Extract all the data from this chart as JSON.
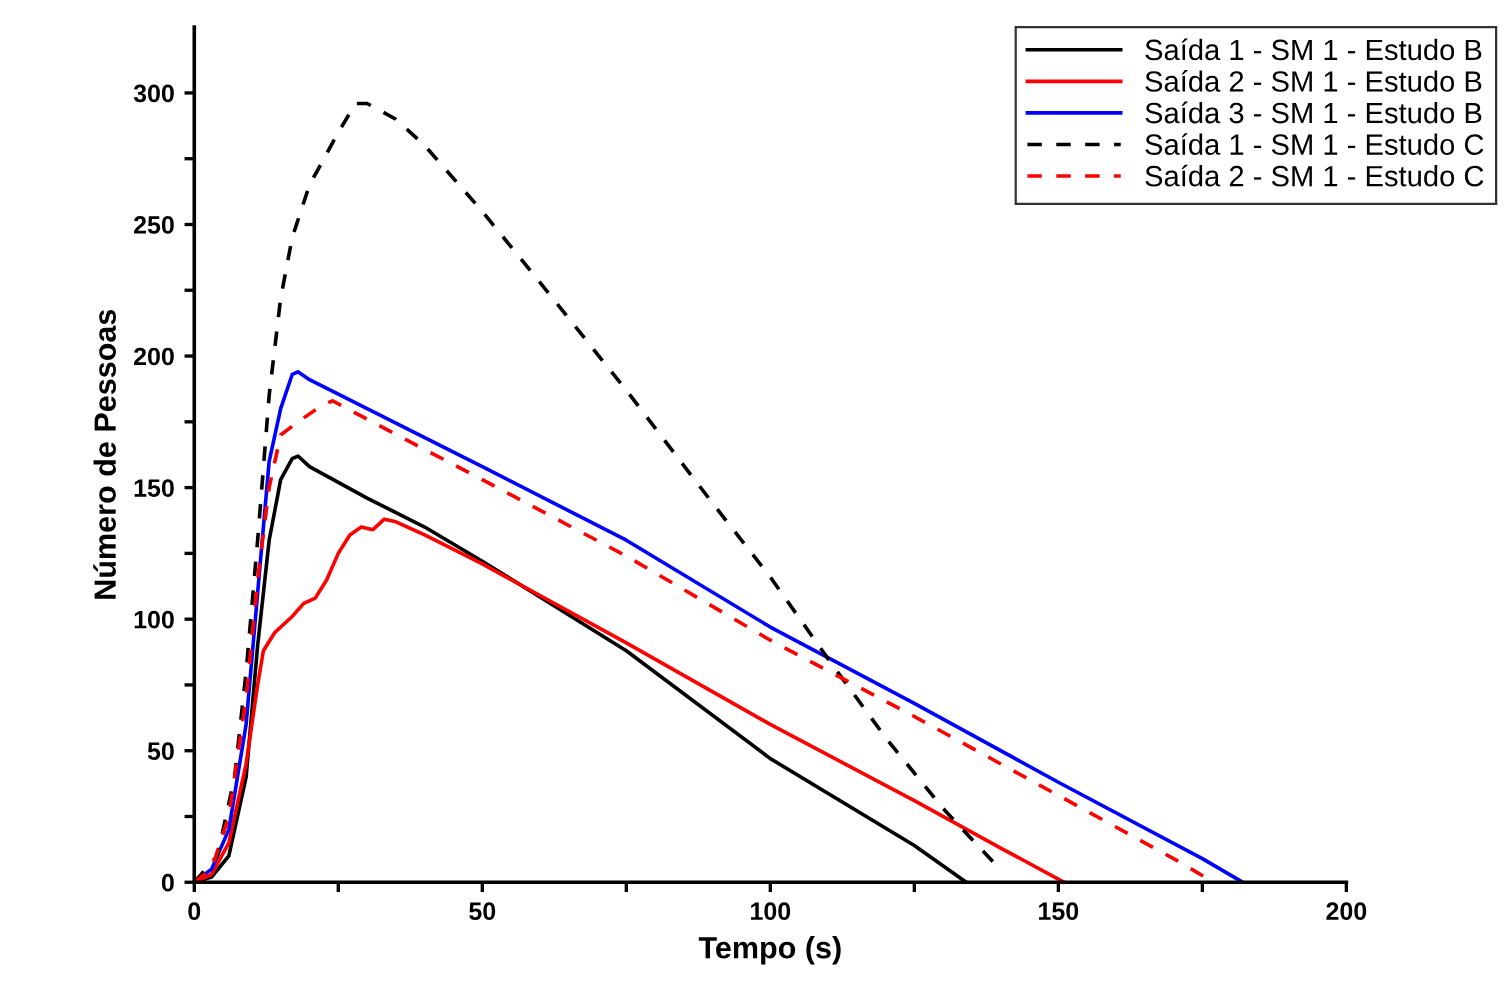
{
  "chart_data": {
    "type": "line",
    "xlabel": "Tempo (s)",
    "ylabel": "Número de Pessoas",
    "xlim": [
      0,
      200
    ],
    "ylim": [
      0,
      325
    ],
    "xticks": [
      0,
      {
        "value": 25,
        "label": null
      },
      50,
      {
        "value": 75,
        "label": null
      },
      100,
      {
        "value": 125,
        "label": null
      },
      150,
      {
        "value": 175,
        "label": null
      },
      200
    ],
    "yticks": [
      0,
      {
        "value": 25,
        "label": null
      },
      50,
      {
        "value": 75,
        "label": null
      },
      100,
      {
        "value": 125,
        "label": null
      },
      150,
      {
        "value": 175,
        "label": null
      },
      200,
      {
        "value": 225,
        "label": null
      },
      250,
      {
        "value": 275,
        "label": null
      },
      300
    ],
    "grid": false,
    "legend": "top right",
    "marker": "none",
    "series": [
      {
        "name": "Saída 1 - SM 1 - Estudo B",
        "color": "#000000",
        "line_style": "solid",
        "x": [
          0,
          3,
          6,
          9,
          11,
          13,
          15,
          17,
          18,
          20,
          30,
          40,
          50,
          75,
          100,
          125,
          134
        ],
        "values": [
          0,
          2,
          10,
          40,
          90,
          130,
          153,
          161,
          162,
          158,
          146,
          135,
          122,
          88,
          47,
          14,
          0
        ]
      },
      {
        "name": "Saída 2 - SM 1 - Estudo B",
        "color": "#ff0000",
        "line_style": "solid",
        "x": [
          0,
          3,
          6,
          9,
          11,
          12,
          14,
          17,
          19,
          21,
          23,
          25,
          27,
          29,
          31,
          33,
          35,
          40,
          50,
          75,
          100,
          125,
          140,
          151
        ],
        "values": [
          0,
          3,
          15,
          45,
          75,
          88,
          95,
          101,
          106,
          108,
          115,
          125,
          132,
          135,
          134,
          138,
          137,
          132,
          121,
          91,
          60,
          31,
          13,
          0
        ]
      },
      {
        "name": "Saída 3 - SM 1 - Estudo B",
        "color": "#0000ff",
        "line_style": "solid",
        "x": [
          0,
          3,
          6,
          9,
          11,
          13,
          15,
          17,
          18,
          20,
          30,
          50,
          75,
          100,
          125,
          150,
          175,
          182
        ],
        "values": [
          0,
          5,
          20,
          60,
          110,
          160,
          180,
          193,
          194,
          191,
          180,
          158,
          130,
          97,
          68,
          38,
          9,
          0
        ]
      },
      {
        "name": "Saída 1 - SM 1 - Estudo C",
        "color": "#000000",
        "line_style": "dashed",
        "x": [
          0,
          4,
          7,
          9,
          11,
          13,
          15,
          17,
          20,
          25,
          28,
          30,
          35,
          40,
          50,
          60,
          75,
          90,
          100,
          110,
          120,
          130,
          139
        ],
        "values": [
          0,
          10,
          40,
          80,
          130,
          185,
          222,
          245,
          265,
          285,
          296,
          296,
          290,
          280,
          255,
          228,
          187,
          144,
          116,
          85,
          55,
          28,
          7
        ]
      },
      {
        "name": "Saída 2 - SM 1 - Estudo C",
        "color": "#ff0000",
        "line_style": "dashed",
        "x": [
          0,
          3,
          6,
          9,
          11,
          13,
          15,
          18,
          22,
          24,
          30,
          50,
          75,
          100,
          125,
          150,
          170,
          177
        ],
        "values": [
          0,
          5,
          25,
          70,
          115,
          150,
          170,
          175,
          181,
          183,
          176,
          153,
          124,
          92,
          63,
          33,
          9,
          0
        ]
      }
    ]
  }
}
